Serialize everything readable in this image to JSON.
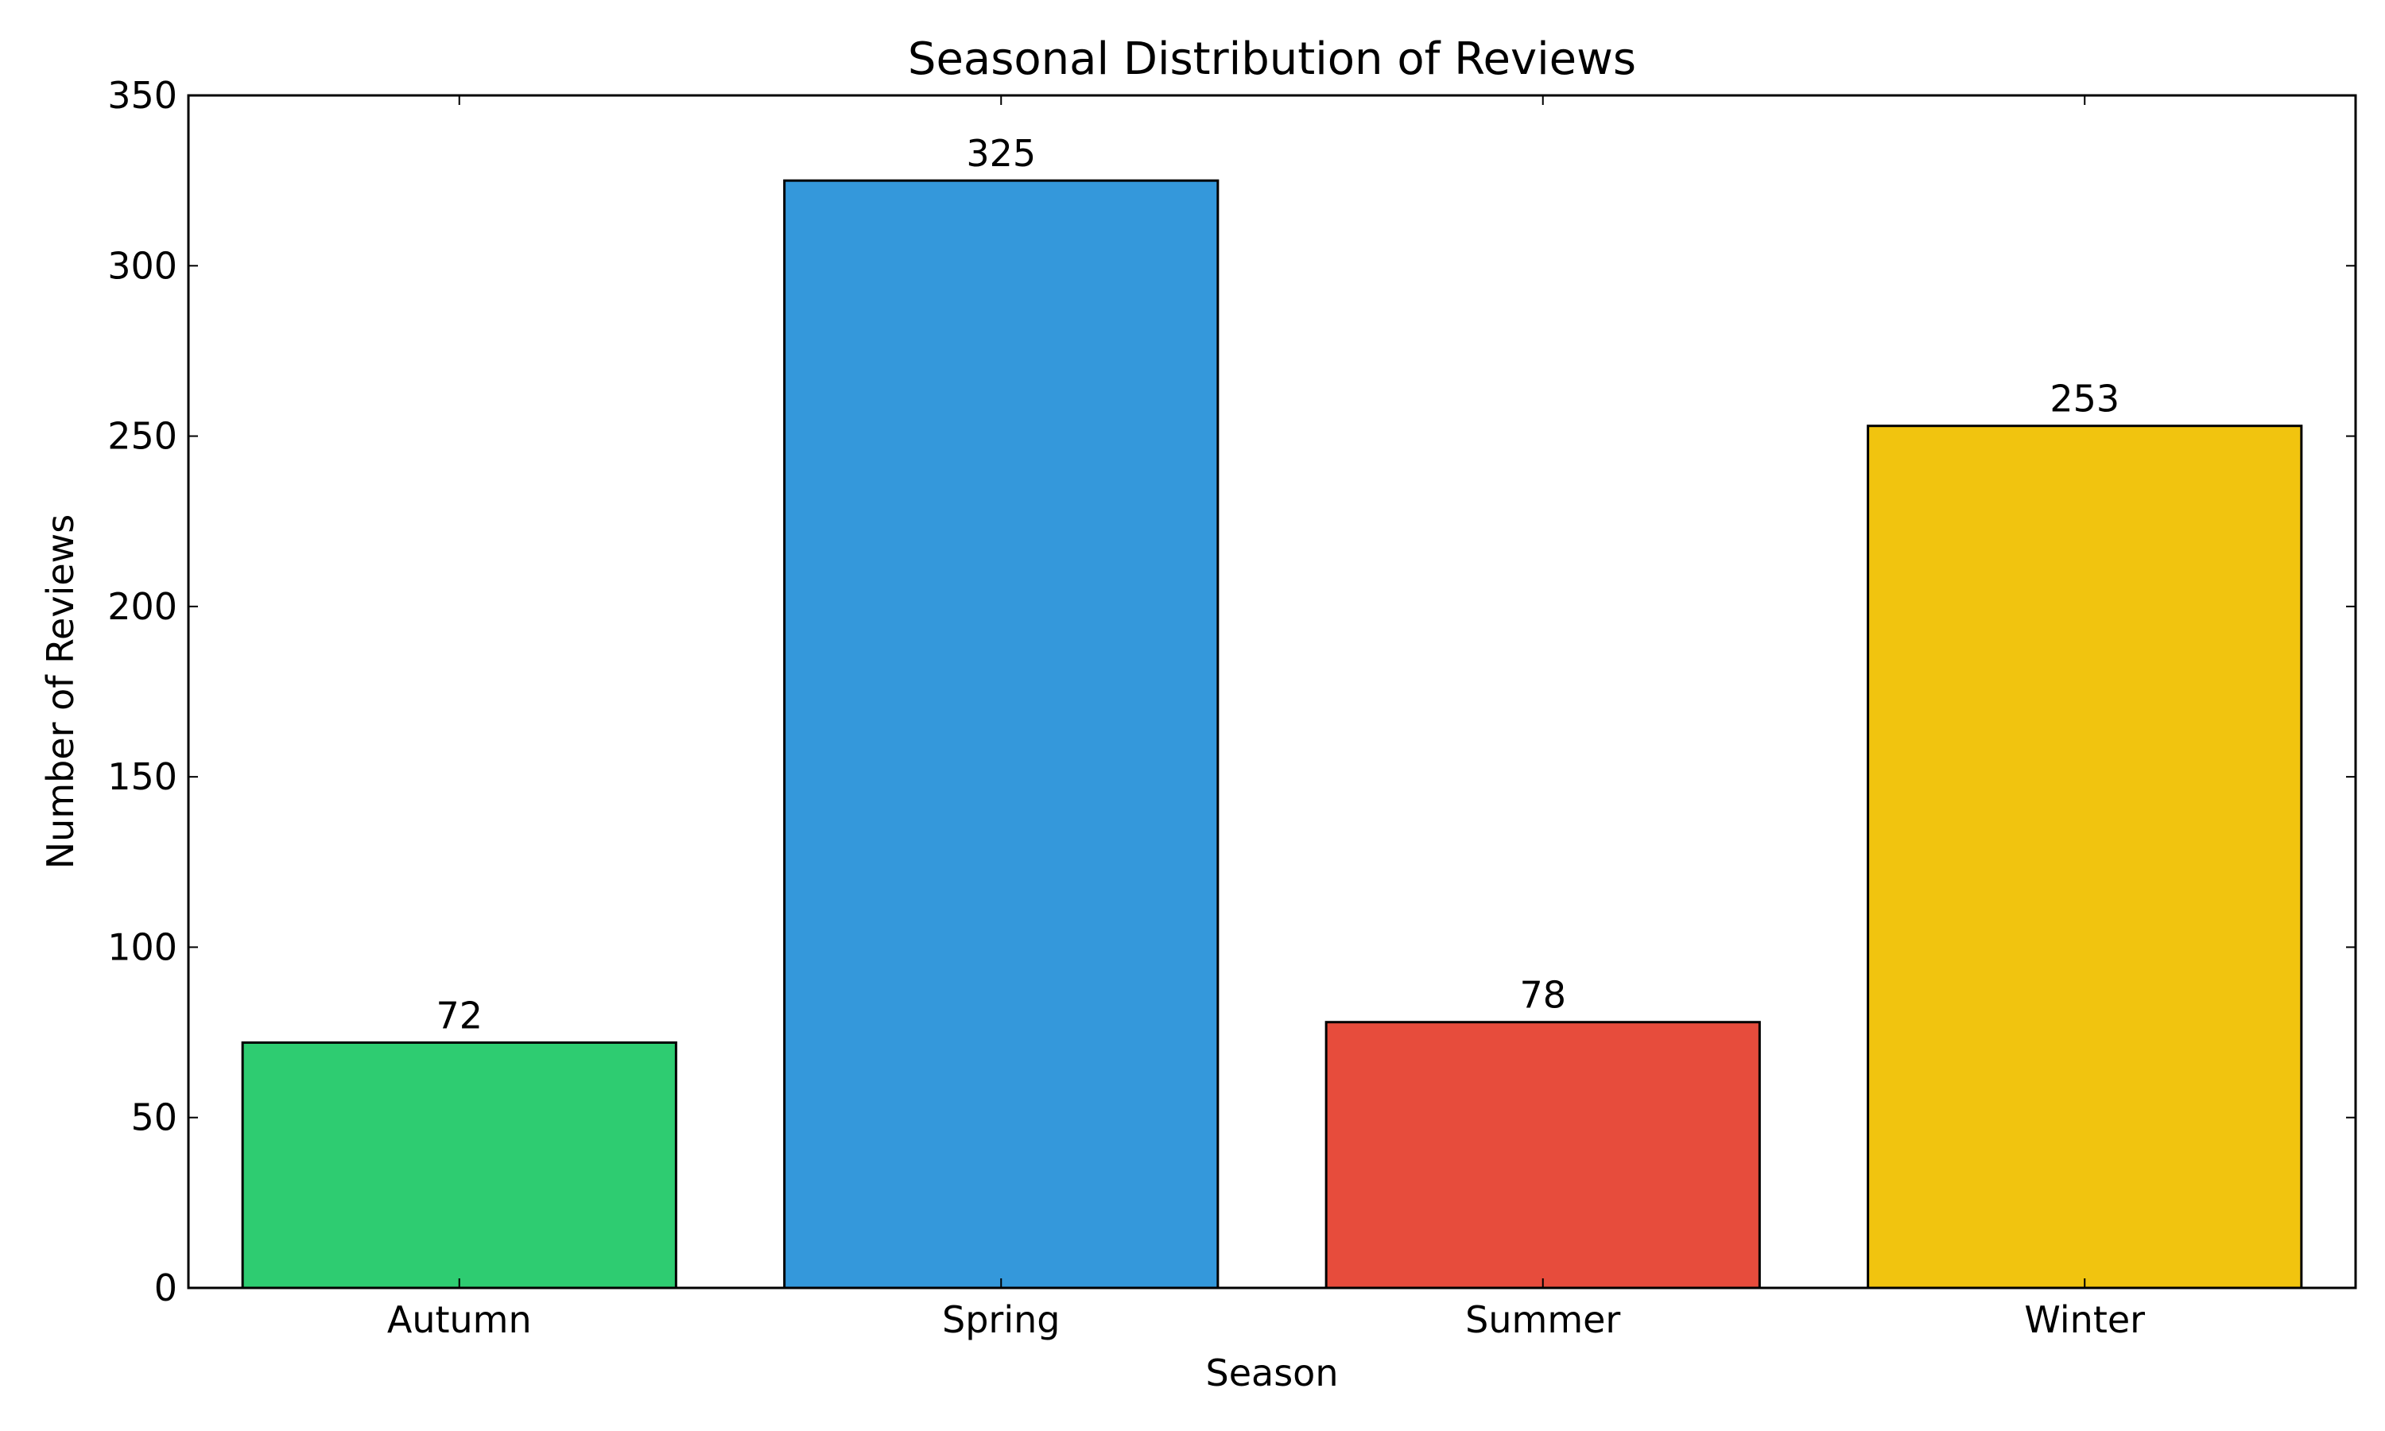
{
  "chart_data": {
    "type": "bar",
    "title": "Seasonal Distribution of Reviews",
    "xlabel": "Season",
    "ylabel": "Number of Reviews",
    "categories": [
      "Autumn",
      "Spring",
      "Summer",
      "Winter"
    ],
    "values": [
      72,
      325,
      78,
      253
    ],
    "data_labels": [
      "72",
      "325",
      "78",
      "253"
    ],
    "colors": [
      "#2ecc71",
      "#3498db",
      "#e74c3c",
      "#f1c40f"
    ],
    "edge_color": "#000000",
    "ylim": [
      0,
      350
    ],
    "yticks": [
      0,
      50,
      100,
      150,
      200,
      250,
      300,
      350
    ],
    "grid": false,
    "legend": "none"
  }
}
